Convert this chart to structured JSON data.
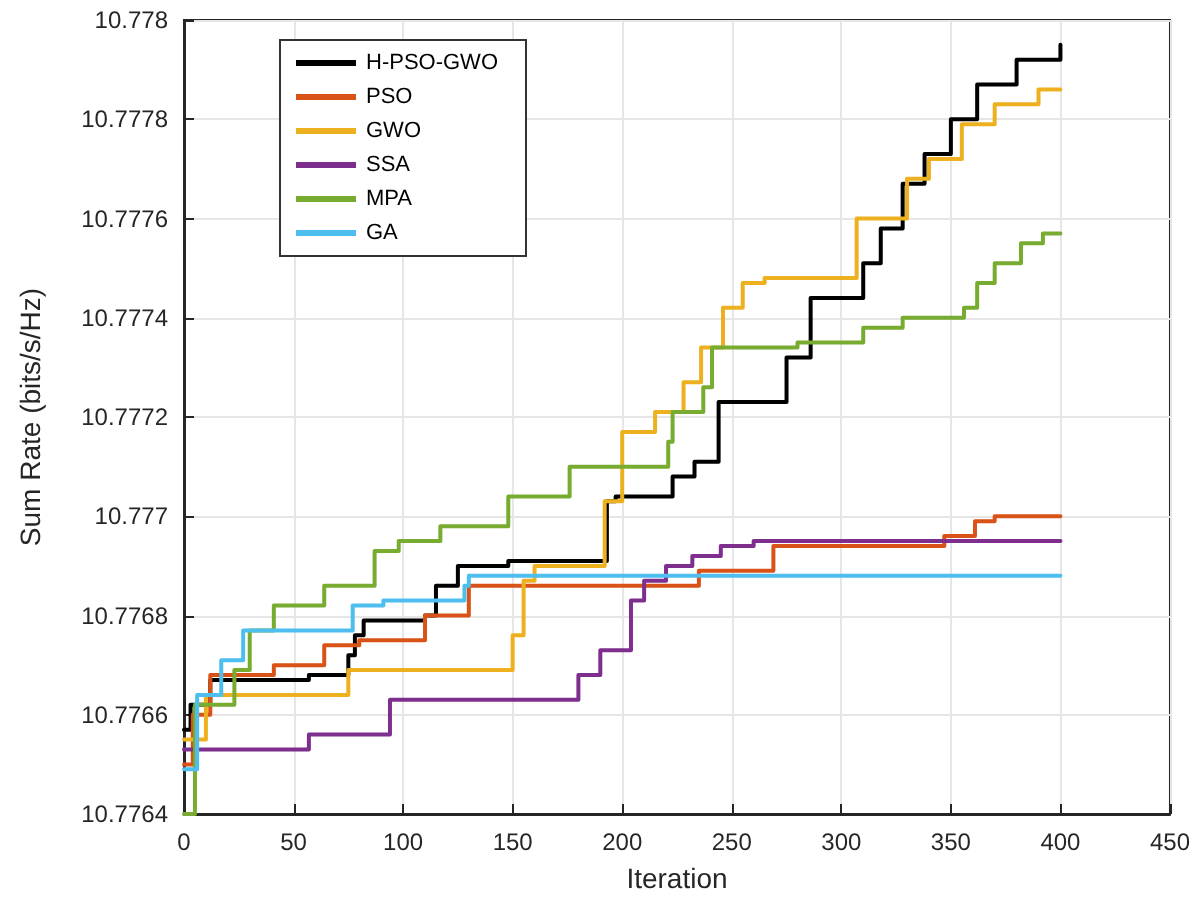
{
  "chart_data": {
    "type": "step",
    "xlabel": "Iteration",
    "ylabel": "Sum Rate (bits/s/Hz)",
    "xlim": [
      0,
      450
    ],
    "xticks": [
      0,
      50,
      100,
      150,
      200,
      250,
      300,
      350,
      400,
      450
    ],
    "ylim": [
      10.7764,
      10.778
    ],
    "yticks": [
      10.7764,
      10.7766,
      10.7768,
      10.777,
      10.7772,
      10.7774,
      10.7776,
      10.7778,
      10.778
    ],
    "grid": true,
    "legend": "top left",
    "line_style": "solid",
    "marker": "none",
    "series": [
      {
        "name": "H-PSO-GWO",
        "color": "#000000",
        "x": [
          0,
          3,
          12,
          57,
          75,
          78,
          82,
          110,
          115,
          125,
          139,
          148,
          193,
          197,
          217,
          223,
          233,
          244,
          271,
          275,
          286,
          307,
          310,
          318,
          328,
          338,
          350,
          362,
          380,
          400
        ],
        "values": [
          10.77657,
          10.77662,
          10.77667,
          10.77668,
          10.77672,
          10.77676,
          10.77679,
          10.7768,
          10.77686,
          10.7769,
          10.7769,
          10.77691,
          10.77703,
          10.77704,
          10.77704,
          10.77708,
          10.77711,
          10.77723,
          10.77723,
          10.77732,
          10.77744,
          10.77744,
          10.77751,
          10.77758,
          10.77767,
          10.77773,
          10.7778,
          10.77787,
          10.77792,
          10.77795
        ]
      },
      {
        "name": "PSO",
        "color": "#d95319",
        "x": [
          0,
          4,
          12,
          41,
          64,
          80,
          110,
          130,
          235,
          269,
          347,
          361,
          370,
          400
        ],
        "values": [
          10.7765,
          10.7766,
          10.77668,
          10.7767,
          10.77674,
          10.77675,
          10.7768,
          10.77686,
          10.77689,
          10.77694,
          10.77696,
          10.77699,
          10.777,
          10.777
        ]
      },
      {
        "name": "GWO",
        "color": "#edb120",
        "x": [
          0,
          10,
          75,
          146,
          150,
          155,
          160,
          192,
          200,
          215,
          228,
          236,
          246,
          255,
          265,
          295,
          307,
          330,
          340,
          355,
          370,
          390,
          400
        ],
        "values": [
          10.77655,
          10.77664,
          10.77669,
          10.77669,
          10.77676,
          10.77687,
          10.7769,
          10.77703,
          10.77717,
          10.77721,
          10.77727,
          10.77734,
          10.77742,
          10.77747,
          10.77748,
          10.77748,
          10.7776,
          10.77768,
          10.77772,
          10.77779,
          10.77783,
          10.77786,
          10.77786
        ]
      },
      {
        "name": "SSA",
        "color": "#7e2f8e",
        "x": [
          0,
          57,
          94,
          164,
          180,
          190,
          204,
          210,
          220,
          232,
          245,
          260,
          400
        ],
        "values": [
          10.77653,
          10.77656,
          10.77663,
          10.77663,
          10.77668,
          10.77673,
          10.77683,
          10.77687,
          10.7769,
          10.77692,
          10.77694,
          10.77695,
          10.77695
        ]
      },
      {
        "name": "MPA",
        "color": "#77ac30",
        "x": [
          0,
          5,
          15,
          23,
          30,
          41,
          64,
          87,
          98,
          117,
          148,
          176,
          221,
          223,
          235,
          237,
          241,
          280,
          310,
          328,
          356,
          362,
          370,
          382,
          392,
          400
        ],
        "values": [
          10.7764,
          10.77662,
          10.77662,
          10.77669,
          10.77677,
          10.77682,
          10.77686,
          10.77693,
          10.77695,
          10.77698,
          10.77704,
          10.7771,
          10.77715,
          10.77721,
          10.77721,
          10.77726,
          10.77734,
          10.77735,
          10.77738,
          10.7774,
          10.77742,
          10.77747,
          10.77751,
          10.77755,
          10.77757,
          10.77757
        ]
      },
      {
        "name": "GA",
        "color": "#4dbeee",
        "x": [
          0,
          6,
          17,
          27,
          77,
          91,
          128,
          130,
          400
        ],
        "values": [
          10.77649,
          10.77664,
          10.77671,
          10.77677,
          10.77682,
          10.77683,
          10.77686,
          10.77688,
          10.77688
        ]
      }
    ]
  }
}
